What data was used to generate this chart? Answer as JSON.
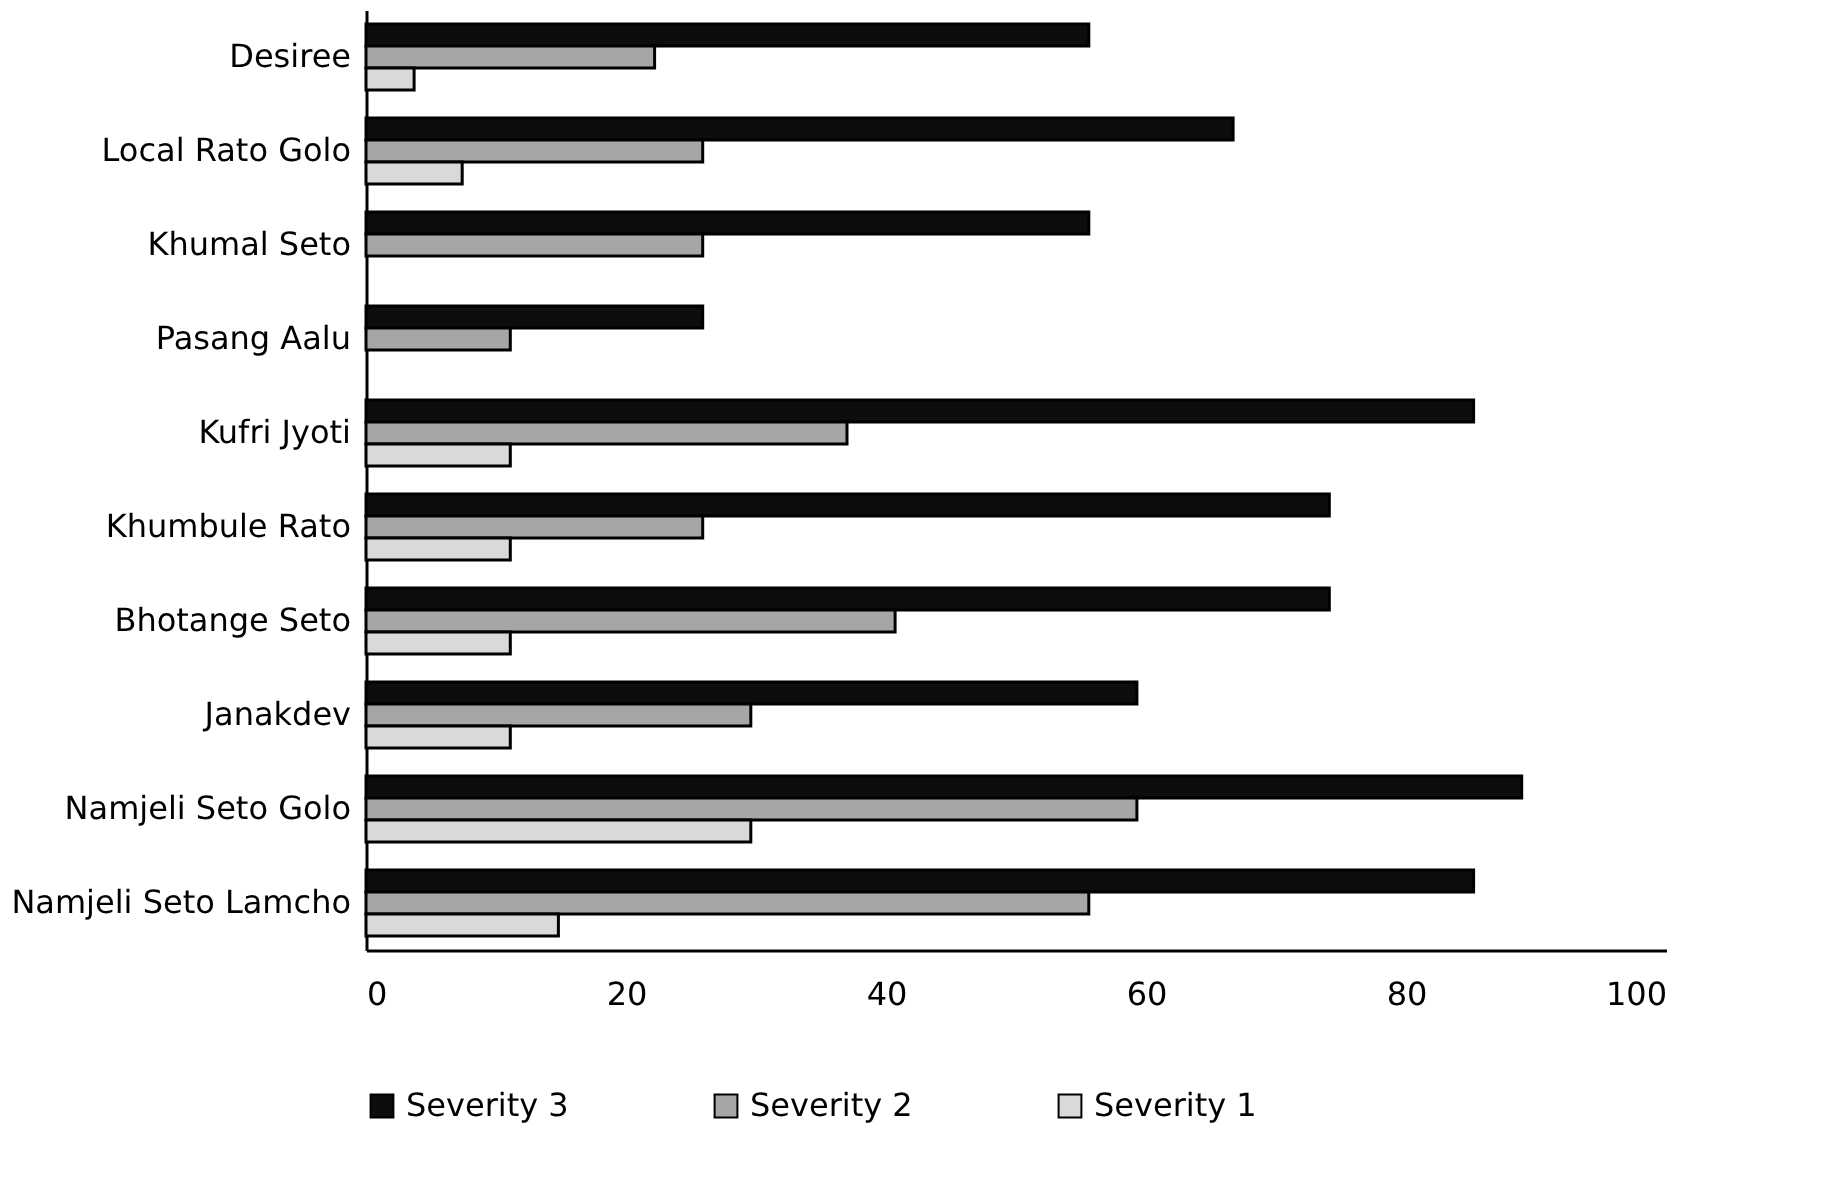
{
  "chart_data": {
    "type": "bar",
    "orientation": "horizontal",
    "categories": [
      "Desiree",
      "Local Rato Golo",
      "Khumal Seto",
      "Pasang Aalu",
      "Kufri Jyoti",
      "Khumbule Rato",
      "Bhotange Seto",
      "Janakdev",
      "Namjeli Seto Golo",
      "Namjeli Seto Lamcho"
    ],
    "series": [
      {
        "name": "Severity 3",
        "color": "#0d0d0d",
        "values": [
          55.6,
          66.7,
          55.6,
          25.9,
          85.2,
          74.1,
          74.1,
          59.3,
          88.9,
          85.2
        ]
      },
      {
        "name": "Severity 2",
        "color": "#a6a6a6",
        "values": [
          22.2,
          25.9,
          25.9,
          11.1,
          37.0,
          25.9,
          40.7,
          29.6,
          59.3,
          55.6
        ]
      },
      {
        "name": "Severity 1",
        "color": "#d9d9d9",
        "values": [
          3.7,
          7.4,
          null,
          null,
          11.1,
          11.1,
          11.1,
          11.1,
          29.6,
          14.8
        ]
      }
    ],
    "xlim": [
      0,
      100
    ],
    "xticks": [
      0,
      20,
      40,
      60,
      80,
      100
    ],
    "grid": false,
    "legend": "bottom"
  }
}
